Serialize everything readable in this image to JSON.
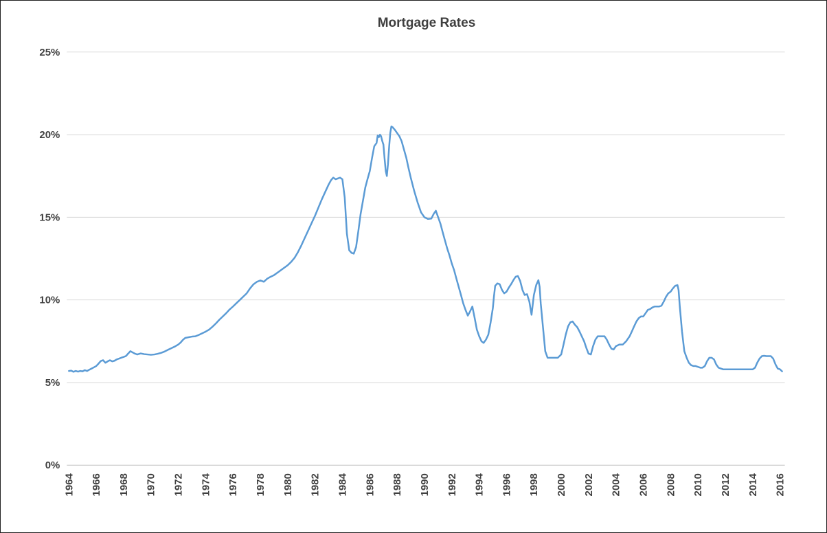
{
  "window": {
    "background": "#FFFFFF",
    "border_color": "#1F1F1F"
  },
  "chart_data": {
    "type": "line",
    "title": "Mortgage Rates",
    "title_color": "#3F3F3F",
    "xlabel": "",
    "ylabel": "",
    "legend": "none",
    "grid": "horizontal-only",
    "grid_color": "#D9D9D9",
    "axis_color": "#BFBFBF",
    "tick_label_color": "#404040",
    "xlim": [
      1963.85,
      2016.35
    ],
    "ylim": [
      0,
      25
    ],
    "x_tick_labels": [
      "1964",
      "1966",
      "1968",
      "1970",
      "1972",
      "1974",
      "1976",
      "1978",
      "1980",
      "1982",
      "1984",
      "1986",
      "1988",
      "1990",
      "1992",
      "1994",
      "1996",
      "1998",
      "2000",
      "2002",
      "2004",
      "2006",
      "2008",
      "2010",
      "2012",
      "2014",
      "2016"
    ],
    "y_tick_values": [
      0,
      5,
      10,
      15,
      20,
      25
    ],
    "y_tick_labels": [
      "0%",
      "5%",
      "10%",
      "15%",
      "20%",
      "25%"
    ],
    "series": [
      {
        "name": "Mortgage Rates",
        "color": "#5B9BD5",
        "width": 2.5,
        "points": [
          [
            1964.0,
            5.7
          ],
          [
            1964.17,
            5.72
          ],
          [
            1964.33,
            5.65
          ],
          [
            1964.5,
            5.7
          ],
          [
            1964.67,
            5.66
          ],
          [
            1964.83,
            5.7
          ],
          [
            1965.0,
            5.68
          ],
          [
            1965.17,
            5.75
          ],
          [
            1965.33,
            5.7
          ],
          [
            1965.5,
            5.78
          ],
          [
            1965.67,
            5.85
          ],
          [
            1965.83,
            5.92
          ],
          [
            1966.0,
            6.0
          ],
          [
            1966.17,
            6.15
          ],
          [
            1966.33,
            6.3
          ],
          [
            1966.5,
            6.35
          ],
          [
            1966.67,
            6.2
          ],
          [
            1966.83,
            6.28
          ],
          [
            1967.0,
            6.35
          ],
          [
            1967.17,
            6.28
          ],
          [
            1967.33,
            6.32
          ],
          [
            1967.5,
            6.4
          ],
          [
            1967.67,
            6.45
          ],
          [
            1967.83,
            6.5
          ],
          [
            1968.0,
            6.55
          ],
          [
            1968.17,
            6.6
          ],
          [
            1968.33,
            6.75
          ],
          [
            1968.5,
            6.9
          ],
          [
            1968.67,
            6.82
          ],
          [
            1968.83,
            6.75
          ],
          [
            1969.0,
            6.7
          ],
          [
            1969.25,
            6.76
          ],
          [
            1969.5,
            6.72
          ],
          [
            1969.75,
            6.7
          ],
          [
            1970.0,
            6.68
          ],
          [
            1970.25,
            6.7
          ],
          [
            1970.5,
            6.74
          ],
          [
            1970.75,
            6.8
          ],
          [
            1971.0,
            6.88
          ],
          [
            1971.25,
            6.98
          ],
          [
            1971.5,
            7.08
          ],
          [
            1971.75,
            7.18
          ],
          [
            1972.0,
            7.3
          ],
          [
            1972.17,
            7.42
          ],
          [
            1972.33,
            7.58
          ],
          [
            1972.5,
            7.7
          ],
          [
            1972.75,
            7.74
          ],
          [
            1973.0,
            7.78
          ],
          [
            1973.25,
            7.8
          ],
          [
            1973.5,
            7.88
          ],
          [
            1973.75,
            7.98
          ],
          [
            1974.0,
            8.08
          ],
          [
            1974.25,
            8.2
          ],
          [
            1974.5,
            8.38
          ],
          [
            1974.75,
            8.58
          ],
          [
            1975.0,
            8.8
          ],
          [
            1975.25,
            9.0
          ],
          [
            1975.5,
            9.2
          ],
          [
            1975.75,
            9.42
          ],
          [
            1976.0,
            9.6
          ],
          [
            1976.25,
            9.8
          ],
          [
            1976.5,
            10.0
          ],
          [
            1976.75,
            10.2
          ],
          [
            1977.0,
            10.4
          ],
          [
            1977.25,
            10.7
          ],
          [
            1977.5,
            10.95
          ],
          [
            1977.75,
            11.1
          ],
          [
            1978.0,
            11.18
          ],
          [
            1978.25,
            11.1
          ],
          [
            1978.5,
            11.28
          ],
          [
            1978.75,
            11.4
          ],
          [
            1979.0,
            11.5
          ],
          [
            1979.25,
            11.65
          ],
          [
            1979.5,
            11.8
          ],
          [
            1979.75,
            11.95
          ],
          [
            1980.0,
            12.1
          ],
          [
            1980.25,
            12.3
          ],
          [
            1980.5,
            12.55
          ],
          [
            1980.75,
            12.9
          ],
          [
            1981.0,
            13.3
          ],
          [
            1981.25,
            13.75
          ],
          [
            1981.5,
            14.2
          ],
          [
            1981.75,
            14.65
          ],
          [
            1982.0,
            15.1
          ],
          [
            1982.25,
            15.6
          ],
          [
            1982.5,
            16.1
          ],
          [
            1982.75,
            16.55
          ],
          [
            1983.0,
            17.0
          ],
          [
            1983.17,
            17.25
          ],
          [
            1983.33,
            17.4
          ],
          [
            1983.5,
            17.3
          ],
          [
            1983.67,
            17.35
          ],
          [
            1983.83,
            17.4
          ],
          [
            1984.0,
            17.3
          ],
          [
            1984.17,
            16.2
          ],
          [
            1984.33,
            14.0
          ],
          [
            1984.5,
            13.0
          ],
          [
            1984.67,
            12.85
          ],
          [
            1984.83,
            12.8
          ],
          [
            1985.0,
            13.2
          ],
          [
            1985.17,
            14.2
          ],
          [
            1985.33,
            15.2
          ],
          [
            1985.5,
            16.0
          ],
          [
            1985.67,
            16.8
          ],
          [
            1985.83,
            17.3
          ],
          [
            1986.0,
            17.8
          ],
          [
            1986.17,
            18.6
          ],
          [
            1986.33,
            19.3
          ],
          [
            1986.5,
            19.5
          ],
          [
            1986.58,
            19.95
          ],
          [
            1986.67,
            19.85
          ],
          [
            1986.75,
            20.0
          ],
          [
            1986.83,
            19.9
          ],
          [
            1986.92,
            19.6
          ],
          [
            1987.0,
            19.4
          ],
          [
            1987.08,
            18.6
          ],
          [
            1987.17,
            17.8
          ],
          [
            1987.25,
            17.5
          ],
          [
            1987.33,
            18.2
          ],
          [
            1987.42,
            19.3
          ],
          [
            1987.5,
            20.1
          ],
          [
            1987.58,
            20.5
          ],
          [
            1987.67,
            20.45
          ],
          [
            1987.83,
            20.3
          ],
          [
            1988.0,
            20.1
          ],
          [
            1988.17,
            19.9
          ],
          [
            1988.33,
            19.6
          ],
          [
            1988.5,
            19.1
          ],
          [
            1988.67,
            18.6
          ],
          [
            1988.83,
            18.0
          ],
          [
            1989.0,
            17.4
          ],
          [
            1989.25,
            16.6
          ],
          [
            1989.5,
            15.9
          ],
          [
            1989.75,
            15.3
          ],
          [
            1990.0,
            15.0
          ],
          [
            1990.25,
            14.9
          ],
          [
            1990.5,
            14.92
          ],
          [
            1990.67,
            15.2
          ],
          [
            1990.83,
            15.4
          ],
          [
            1991.0,
            15.0
          ],
          [
            1991.17,
            14.6
          ],
          [
            1991.33,
            14.1
          ],
          [
            1991.5,
            13.6
          ],
          [
            1991.67,
            13.1
          ],
          [
            1991.83,
            12.7
          ],
          [
            1992.0,
            12.2
          ],
          [
            1992.17,
            11.8
          ],
          [
            1992.33,
            11.3
          ],
          [
            1992.5,
            10.8
          ],
          [
            1992.67,
            10.3
          ],
          [
            1992.83,
            9.8
          ],
          [
            1993.0,
            9.4
          ],
          [
            1993.17,
            9.05
          ],
          [
            1993.33,
            9.3
          ],
          [
            1993.5,
            9.6
          ],
          [
            1993.67,
            8.9
          ],
          [
            1993.83,
            8.2
          ],
          [
            1994.0,
            7.8
          ],
          [
            1994.17,
            7.5
          ],
          [
            1994.33,
            7.4
          ],
          [
            1994.5,
            7.6
          ],
          [
            1994.67,
            7.9
          ],
          [
            1994.83,
            8.6
          ],
          [
            1995.0,
            9.5
          ],
          [
            1995.08,
            10.2
          ],
          [
            1995.17,
            10.85
          ],
          [
            1995.33,
            11.0
          ],
          [
            1995.5,
            10.95
          ],
          [
            1995.67,
            10.6
          ],
          [
            1995.83,
            10.4
          ],
          [
            1996.0,
            10.5
          ],
          [
            1996.17,
            10.75
          ],
          [
            1996.33,
            10.95
          ],
          [
            1996.5,
            11.2
          ],
          [
            1996.67,
            11.4
          ],
          [
            1996.83,
            11.45
          ],
          [
            1997.0,
            11.15
          ],
          [
            1997.17,
            10.6
          ],
          [
            1997.33,
            10.3
          ],
          [
            1997.5,
            10.35
          ],
          [
            1997.67,
            9.9
          ],
          [
            1997.83,
            9.1
          ],
          [
            1998.0,
            10.3
          ],
          [
            1998.17,
            10.9
          ],
          [
            1998.33,
            11.2
          ],
          [
            1998.42,
            10.8
          ],
          [
            1998.5,
            9.8
          ],
          [
            1998.67,
            8.3
          ],
          [
            1998.83,
            6.9
          ],
          [
            1999.0,
            6.5
          ],
          [
            1999.25,
            6.5
          ],
          [
            1999.5,
            6.5
          ],
          [
            1999.75,
            6.5
          ],
          [
            2000.0,
            6.7
          ],
          [
            2000.17,
            7.3
          ],
          [
            2000.33,
            7.9
          ],
          [
            2000.5,
            8.4
          ],
          [
            2000.67,
            8.65
          ],
          [
            2000.83,
            8.7
          ],
          [
            2001.0,
            8.5
          ],
          [
            2001.17,
            8.35
          ],
          [
            2001.33,
            8.1
          ],
          [
            2001.5,
            7.8
          ],
          [
            2001.67,
            7.5
          ],
          [
            2001.83,
            7.1
          ],
          [
            2002.0,
            6.75
          ],
          [
            2002.17,
            6.7
          ],
          [
            2002.33,
            7.2
          ],
          [
            2002.5,
            7.6
          ],
          [
            2002.67,
            7.8
          ],
          [
            2002.83,
            7.8
          ],
          [
            2003.0,
            7.8
          ],
          [
            2003.17,
            7.8
          ],
          [
            2003.33,
            7.6
          ],
          [
            2003.5,
            7.3
          ],
          [
            2003.67,
            7.05
          ],
          [
            2003.83,
            7.0
          ],
          [
            2004.0,
            7.2
          ],
          [
            2004.25,
            7.3
          ],
          [
            2004.5,
            7.3
          ],
          [
            2004.75,
            7.5
          ],
          [
            2005.0,
            7.8
          ],
          [
            2005.17,
            8.1
          ],
          [
            2005.33,
            8.4
          ],
          [
            2005.5,
            8.7
          ],
          [
            2005.67,
            8.9
          ],
          [
            2005.83,
            9.0
          ],
          [
            2006.0,
            9.0
          ],
          [
            2006.17,
            9.2
          ],
          [
            2006.33,
            9.4
          ],
          [
            2006.5,
            9.45
          ],
          [
            2006.67,
            9.55
          ],
          [
            2006.83,
            9.6
          ],
          [
            2007.0,
            9.6
          ],
          [
            2007.17,
            9.6
          ],
          [
            2007.33,
            9.65
          ],
          [
            2007.5,
            9.9
          ],
          [
            2007.67,
            10.2
          ],
          [
            2007.83,
            10.4
          ],
          [
            2008.0,
            10.5
          ],
          [
            2008.17,
            10.7
          ],
          [
            2008.33,
            10.85
          ],
          [
            2008.5,
            10.9
          ],
          [
            2008.58,
            10.6
          ],
          [
            2008.67,
            9.6
          ],
          [
            2008.83,
            8.1
          ],
          [
            2009.0,
            6.9
          ],
          [
            2009.17,
            6.5
          ],
          [
            2009.33,
            6.2
          ],
          [
            2009.5,
            6.05
          ],
          [
            2009.67,
            6.0
          ],
          [
            2009.83,
            6.0
          ],
          [
            2010.0,
            5.95
          ],
          [
            2010.17,
            5.9
          ],
          [
            2010.33,
            5.9
          ],
          [
            2010.5,
            6.0
          ],
          [
            2010.67,
            6.3
          ],
          [
            2010.83,
            6.5
          ],
          [
            2011.0,
            6.5
          ],
          [
            2011.17,
            6.4
          ],
          [
            2011.33,
            6.1
          ],
          [
            2011.5,
            5.9
          ],
          [
            2011.67,
            5.85
          ],
          [
            2011.83,
            5.8
          ],
          [
            2012.0,
            5.8
          ],
          [
            2012.5,
            5.8
          ],
          [
            2013.0,
            5.8
          ],
          [
            2013.5,
            5.8
          ],
          [
            2014.0,
            5.8
          ],
          [
            2014.17,
            5.9
          ],
          [
            2014.33,
            6.2
          ],
          [
            2014.5,
            6.45
          ],
          [
            2014.67,
            6.6
          ],
          [
            2014.83,
            6.62
          ],
          [
            2015.0,
            6.6
          ],
          [
            2015.17,
            6.6
          ],
          [
            2015.33,
            6.6
          ],
          [
            2015.5,
            6.45
          ],
          [
            2015.67,
            6.1
          ],
          [
            2015.83,
            5.85
          ],
          [
            2016.0,
            5.8
          ],
          [
            2016.15,
            5.68
          ]
        ]
      }
    ]
  }
}
